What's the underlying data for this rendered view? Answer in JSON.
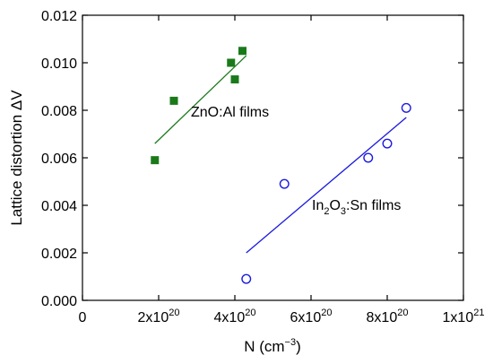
{
  "chart_data": {
    "type": "scatter",
    "xlabel": "N (cm",
    "xlabel_sup": "−3",
    "xlabel_end": ")",
    "ylabel": "Lattice distortion ΔV",
    "xlim": [
      0,
      1e+21
    ],
    "ylim": [
      0,
      0.012
    ],
    "grid": false,
    "x_ticks": [
      {
        "value": 0,
        "base": "0",
        "exp": ""
      },
      {
        "value": 2e+20,
        "base": "2x10",
        "exp": "20"
      },
      {
        "value": 4e+20,
        "base": "4x10",
        "exp": "20"
      },
      {
        "value": 6e+20,
        "base": "6x10",
        "exp": "20"
      },
      {
        "value": 8e+20,
        "base": "8x10",
        "exp": "20"
      },
      {
        "value": 1e+21,
        "base": "1x10",
        "exp": "21"
      }
    ],
    "y_ticks": [
      {
        "value": 0.0,
        "label": "0.000"
      },
      {
        "value": 0.002,
        "label": "0.002"
      },
      {
        "value": 0.004,
        "label": "0.004"
      },
      {
        "value": 0.006,
        "label": "0.006"
      },
      {
        "value": 0.008,
        "label": "0.008"
      },
      {
        "value": 0.01,
        "label": "0.010"
      },
      {
        "value": 0.012,
        "label": "0.012"
      }
    ],
    "series": [
      {
        "name": "ZnO:Al films",
        "marker": "filled-square",
        "color": "#1a7a1a",
        "points": [
          {
            "x": 1.9e+20,
            "y": 0.0059
          },
          {
            "x": 2.4e+20,
            "y": 0.0084
          },
          {
            "x": 3.9e+20,
            "y": 0.01
          },
          {
            "x": 4e+20,
            "y": 0.0093
          },
          {
            "x": 4.2e+20,
            "y": 0.0105
          }
        ],
        "fit": [
          {
            "x": 1.9e+20,
            "y": 0.0066
          },
          {
            "x": 4.3e+20,
            "y": 0.0103
          }
        ]
      },
      {
        "name": "In2O3:Sn films",
        "marker": "open-circle",
        "color": "#1a1adf",
        "points": [
          {
            "x": 4.3e+20,
            "y": 0.0009
          },
          {
            "x": 5.3e+20,
            "y": 0.0049
          },
          {
            "x": 7.5e+20,
            "y": 0.006
          },
          {
            "x": 8e+20,
            "y": 0.0066
          },
          {
            "x": 8.5e+20,
            "y": 0.0081
          }
        ],
        "fit": [
          {
            "x": 4.3e+20,
            "y": 0.002
          },
          {
            "x": 8.5e+20,
            "y": 0.0077
          }
        ]
      }
    ],
    "annotations": {
      "zno": {
        "text": "ZnO:Al films"
      },
      "ito": {
        "p1": "In",
        "s1": "2",
        "p2": "O",
        "s2": "3",
        "p3": ":Sn films"
      }
    }
  }
}
